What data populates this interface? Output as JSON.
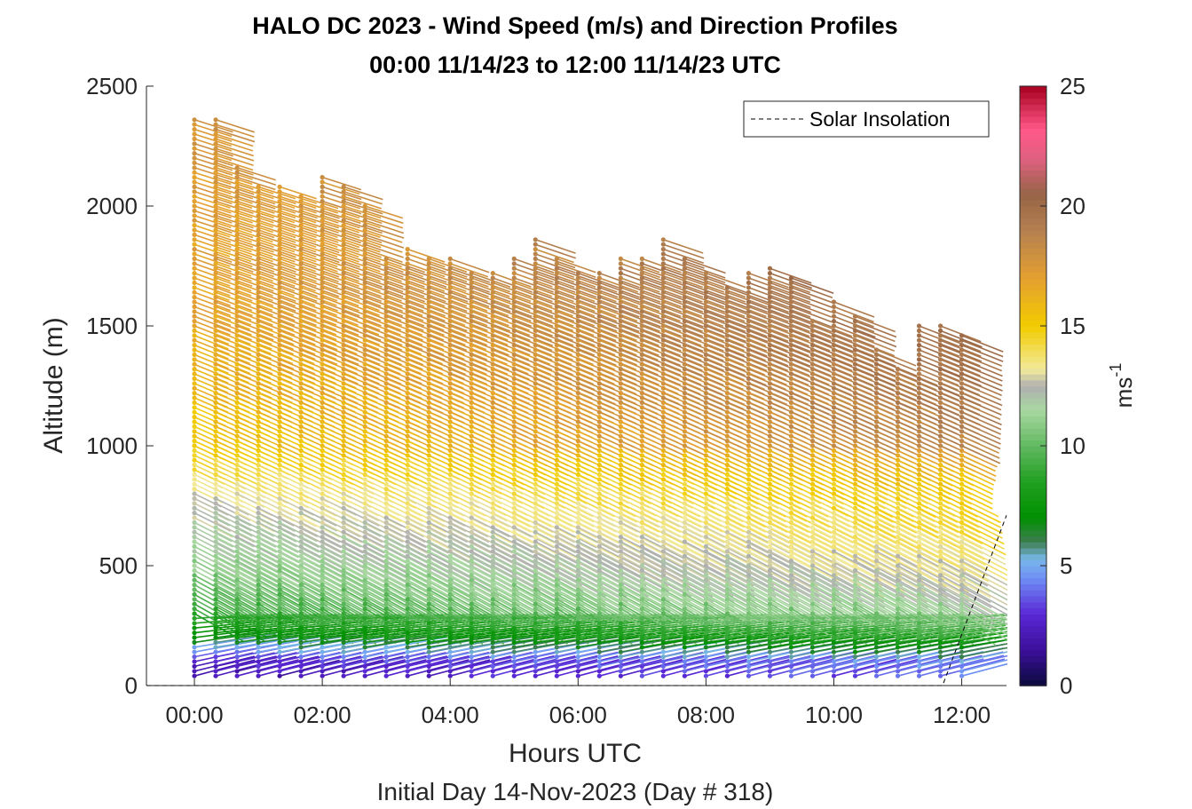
{
  "chart_data": {
    "type": "scatter",
    "title": "HALO DC 2023 - Wind Speed (m/s) and Direction Profiles",
    "subtitle": "00:00 11/14/23 to 12:00 11/14/23  UTC",
    "xlabel": "Hours UTC",
    "xlabel2": "Initial Day 14-Nov-2023 (Day # 318)",
    "ylabel": "Altitude (m)",
    "xlim": [
      -0.75,
      12.7
    ],
    "ylim": [
      0,
      2500
    ],
    "xticks": [
      0,
      2,
      4,
      6,
      8,
      10,
      12
    ],
    "xtick_labels": [
      "00:00",
      "02:00",
      "04:00",
      "06:00",
      "08:00",
      "10:00",
      "12:00"
    ],
    "yticks": [
      0,
      500,
      1000,
      1500,
      2000,
      2500
    ],
    "ytick_labels": [
      "0",
      "500",
      "1000",
      "1500",
      "2000",
      "2500"
    ],
    "grid": false,
    "legend": {
      "position": "top-right",
      "entries": [
        {
          "label": "Solar Insolation",
          "style": "dashed",
          "color": "#000000"
        }
      ]
    },
    "colorbar": {
      "label": "ms",
      "label_superscript": "-1",
      "range": [
        0,
        25
      ],
      "ticks": [
        0,
        5,
        10,
        15,
        20,
        25
      ],
      "tick_labels": [
        "0",
        "5",
        "10",
        "15",
        "20",
        "25"
      ],
      "stops": [
        {
          "v": 0,
          "c": "#0a0a3c"
        },
        {
          "v": 1.5,
          "c": "#3c0f9a"
        },
        {
          "v": 3,
          "c": "#5a28d6"
        },
        {
          "v": 4.5,
          "c": "#6e8ef5"
        },
        {
          "v": 5.3,
          "c": "#78b8e8"
        },
        {
          "v": 6,
          "c": "#3e7e52"
        },
        {
          "v": 7,
          "c": "#009000"
        },
        {
          "v": 8.5,
          "c": "#20a020"
        },
        {
          "v": 10,
          "c": "#60b860"
        },
        {
          "v": 11.5,
          "c": "#a8d8a0"
        },
        {
          "v": 12.5,
          "c": "#b0b0b0"
        },
        {
          "v": 13.2,
          "c": "#f2ea9c"
        },
        {
          "v": 15,
          "c": "#f2cc00"
        },
        {
          "v": 17,
          "c": "#e4a030"
        },
        {
          "v": 19,
          "c": "#b48050"
        },
        {
          "v": 20.5,
          "c": "#966446"
        },
        {
          "v": 22,
          "c": "#e06080"
        },
        {
          "v": 23.2,
          "c": "#ff5888"
        },
        {
          "v": 25,
          "c": "#a80020"
        }
      ]
    },
    "profile_times_hours": [
      0,
      0.333,
      0.667,
      1.0,
      1.333,
      1.667,
      2.0,
      2.333,
      2.667,
      3.0,
      3.333,
      3.667,
      4.0,
      4.333,
      4.667,
      5.0,
      5.333,
      5.667,
      6.0,
      6.333,
      6.667,
      7.0,
      7.333,
      7.667,
      8.0,
      8.333,
      8.667,
      9.0,
      9.333,
      9.667,
      10.0,
      10.333,
      10.667,
      11.0,
      11.333,
      11.667,
      12.0
    ],
    "profile_top_m": [
      2370,
      2370,
      2170,
      2090,
      2090,
      2050,
      2130,
      2090,
      2000,
      1780,
      1830,
      1780,
      1780,
      1720,
      1720,
      1780,
      1870,
      1780,
      1720,
      1720,
      1780,
      1780,
      1870,
      1780,
      1720,
      1670,
      1720,
      1740,
      1700,
      1530,
      1610,
      1540,
      1410,
      1330,
      1500,
      1500,
      1460
    ],
    "series": [
      {
        "name": "Wind Speed (m/s)",
        "altitude_m": [
          50,
          100,
          150,
          200,
          300,
          400,
          500,
          650,
          800,
          900,
          1000,
          1300,
          1700,
          2000,
          2370
        ],
        "speed_ms": [
          2,
          3,
          5,
          7,
          9,
          10,
          11,
          12,
          13,
          14,
          15,
          16,
          17,
          17,
          18
        ]
      },
      {
        "name": "Solar Insolation",
        "x_hours": [
          -0.75,
          11.7,
          12.7
        ],
        "y_m": [
          0,
          0,
          710
        ]
      }
    ]
  }
}
